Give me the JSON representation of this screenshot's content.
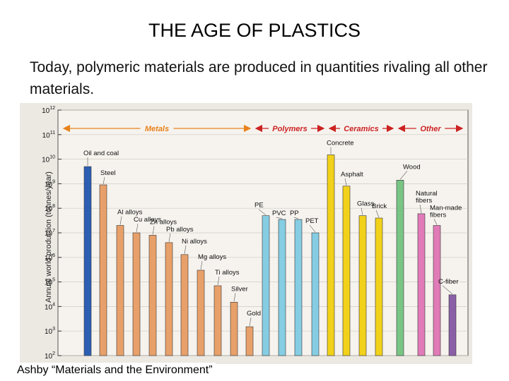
{
  "slide": {
    "title": "THE AGE OF PLASTICS",
    "text": "Today, polymeric materials are produced in quantities rivaling all other materials.",
    "caption": "Ashby “Materials and the Environment”"
  },
  "chart_data": {
    "type": "bar",
    "ylabel": "Annual world production (tonnes/year)",
    "yscale": "log",
    "ylim": [
      100,
      1000000000000
    ],
    "y_ticks": [
      {
        "base": "10",
        "exp": "2"
      },
      {
        "base": "10",
        "exp": "3"
      },
      {
        "base": "10",
        "exp": "4"
      },
      {
        "base": "10",
        "exp": "5"
      },
      {
        "base": "10",
        "exp": "6"
      },
      {
        "base": "10",
        "exp": "7"
      },
      {
        "base": "10",
        "exp": "8"
      },
      {
        "base": "10",
        "exp": "9"
      },
      {
        "base": "10",
        "exp": "10"
      },
      {
        "base": "10",
        "exp": "11"
      },
      {
        "base": "10",
        "exp": "12"
      }
    ],
    "groups": [
      {
        "label": "Metals",
        "color": "#e8821c"
      },
      {
        "label": "Polymers",
        "color": "#cc2222"
      },
      {
        "label": "Ceramics",
        "color": "#cc2222"
      },
      {
        "label": "Other",
        "color": "#cc2222"
      }
    ],
    "bars": [
      {
        "label": "Oil and coal",
        "value": 5000000000,
        "color": "#2c5fb3"
      },
      {
        "label": "Steel",
        "value": 900000000,
        "color": "#e8a06a"
      },
      {
        "label": "Al alloys",
        "value": 20000000,
        "color": "#e8a06a"
      },
      {
        "label": "Cu alloys",
        "value": 10000000,
        "color": "#e8a06a"
      },
      {
        "label": "Zn alloys",
        "value": 8000000,
        "color": "#e8a06a"
      },
      {
        "label": "Pb alloys",
        "value": 4000000,
        "color": "#e8a06a"
      },
      {
        "label": "Ni alloys",
        "value": 1300000,
        "color": "#e8a06a"
      },
      {
        "label": "Mg alloys",
        "value": 300000,
        "color": "#e8a06a"
      },
      {
        "label": "Ti alloys",
        "value": 70000,
        "color": "#e8a06a"
      },
      {
        "label": "Silver",
        "value": 15000,
        "color": "#e8a06a"
      },
      {
        "label": "Gold",
        "value": 1500,
        "color": "#e8a06a"
      },
      {
        "label": "PE",
        "value": 50000000,
        "color": "#86cde3"
      },
      {
        "label": "PVC",
        "value": 35000000,
        "color": "#86cde3"
      },
      {
        "label": "PP",
        "value": 35000000,
        "color": "#86cde3"
      },
      {
        "label": "PET",
        "value": 10000000,
        "color": "#86cde3"
      },
      {
        "label": "Concrete",
        "value": 15000000000,
        "color": "#f2d11a"
      },
      {
        "label": "Asphalt",
        "value": 800000000,
        "color": "#f2d11a"
      },
      {
        "label": "Glass",
        "value": 50000000,
        "color": "#f2d11a"
      },
      {
        "label": "Brick",
        "value": 40000000,
        "color": "#f2d11a"
      },
      {
        "label": "Wood",
        "value": 1400000000,
        "color": "#79c584"
      },
      {
        "label": "Natural fibers",
        "value": 60000000,
        "color": "#e07bb8"
      },
      {
        "label": "Man-made fibers",
        "value": 20000000,
        "color": "#e07bb8"
      },
      {
        "label": "C-fiber",
        "value": 30000,
        "color": "#8b5fa8"
      }
    ]
  }
}
